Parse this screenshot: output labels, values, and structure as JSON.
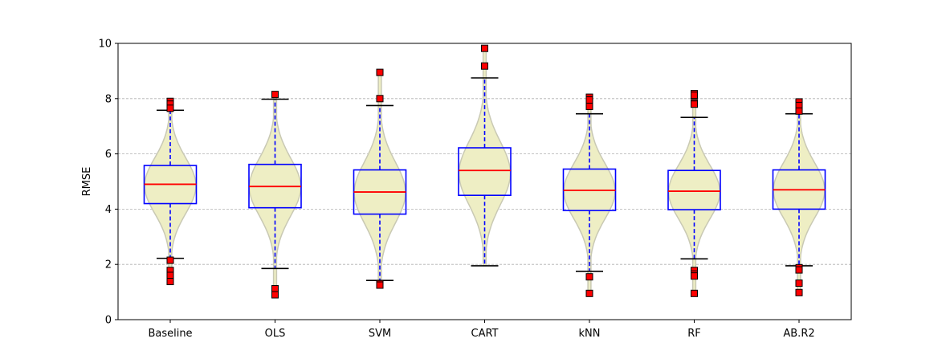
{
  "chart_data": {
    "type": "box-violin",
    "title": "",
    "xlabel": "",
    "ylabel": "RMSE",
    "ylim": [
      0,
      10
    ],
    "yticks": [
      0,
      2,
      4,
      6,
      8,
      10
    ],
    "grid": "y-dashed",
    "colors": {
      "violin_fill": "#eeeec4",
      "violin_edge": "#c9c9b4",
      "box": "#0000ff",
      "median": "#ff0000",
      "whisker": "#0000ff",
      "cap": "#000000",
      "outlier_fill": "#ff0000",
      "outlier_edge": "#000000",
      "grid": "#b0b0b0"
    },
    "categories": [
      "Baseline",
      "OLS",
      "SVM",
      "CART",
      "kNN",
      "RF",
      "AB.R2"
    ],
    "series": [
      {
        "category": "Baseline",
        "q1": 4.2,
        "median": 4.9,
        "q3": 5.58,
        "whisker_low": 2.22,
        "whisker_high": 7.58,
        "outliers": [
          7.9,
          7.8,
          7.65,
          2.15,
          1.78,
          1.6,
          1.38
        ],
        "violin": {
          "min": 1.38,
          "max": 7.9,
          "mode": 4.85,
          "spread": 1.0
        }
      },
      {
        "category": "OLS",
        "q1": 4.05,
        "median": 4.82,
        "q3": 5.62,
        "whisker_low": 1.85,
        "whisker_high": 7.98,
        "outliers": [
          8.15,
          1.12,
          0.9
        ],
        "violin": {
          "min": 0.9,
          "max": 8.15,
          "mode": 4.8,
          "spread": 1.05
        }
      },
      {
        "category": "SVM",
        "q1": 3.82,
        "median": 4.62,
        "q3": 5.42,
        "whisker_low": 1.42,
        "whisker_high": 7.75,
        "outliers": [
          8.95,
          8.0,
          1.3,
          1.25
        ],
        "violin": {
          "min": 1.25,
          "max": 8.95,
          "mode": 4.6,
          "spread": 1.1
        }
      },
      {
        "category": "CART",
        "q1": 4.5,
        "median": 5.4,
        "q3": 6.22,
        "whisker_low": 1.95,
        "whisker_high": 8.75,
        "outliers": [
          9.82,
          9.18
        ],
        "violin": {
          "min": 1.95,
          "max": 9.82,
          "mode": 5.3,
          "spread": 1.15
        }
      },
      {
        "category": "kNN",
        "q1": 3.95,
        "median": 4.68,
        "q3": 5.45,
        "whisker_low": 1.75,
        "whisker_high": 7.45,
        "outliers": [
          8.05,
          7.95,
          7.72,
          1.55,
          0.95
        ],
        "violin": {
          "min": 0.95,
          "max": 8.05,
          "mode": 4.65,
          "spread": 1.0
        }
      },
      {
        "category": "RF",
        "q1": 3.98,
        "median": 4.65,
        "q3": 5.4,
        "whisker_low": 2.2,
        "whisker_high": 7.32,
        "outliers": [
          8.18,
          8.12,
          7.85,
          7.8,
          1.78,
          1.65,
          1.58,
          0.95
        ],
        "violin": {
          "min": 0.95,
          "max": 8.18,
          "mode": 4.62,
          "spread": 0.98
        }
      },
      {
        "category": "AB.R2",
        "q1": 4.0,
        "median": 4.7,
        "q3": 5.42,
        "whisker_low": 1.95,
        "whisker_high": 7.45,
        "outliers": [
          7.88,
          7.75,
          7.55,
          1.88,
          1.8,
          1.32,
          0.98
        ],
        "violin": {
          "min": 0.98,
          "max": 7.88,
          "mode": 4.68,
          "spread": 1.0
        }
      }
    ]
  }
}
